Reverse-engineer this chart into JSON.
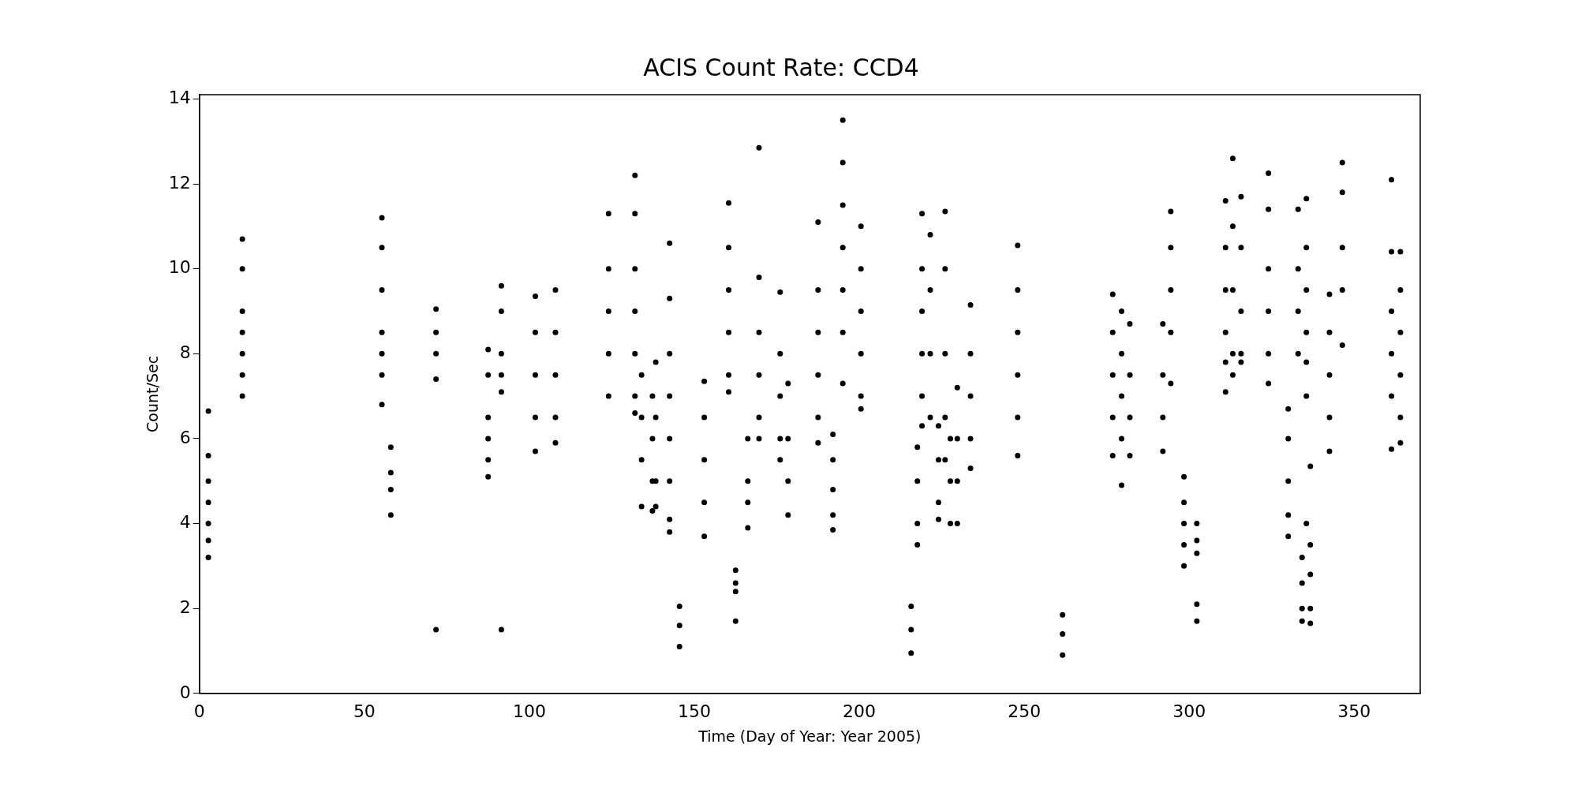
{
  "chart_data": {
    "type": "scatter",
    "title": "ACIS Count Rate: CCD4",
    "xlabel": "Time (Day of Year: Year 2005)",
    "ylabel": "Count/Sec",
    "xlim": [
      0,
      370
    ],
    "ylim": [
      0,
      14.1
    ],
    "xticks": [
      0,
      50,
      100,
      150,
      200,
      250,
      300,
      350
    ],
    "yticks": [
      0,
      2,
      4,
      6,
      8,
      10,
      12,
      14
    ],
    "grid": false,
    "legend": false,
    "marker": "circle",
    "series": [
      {
        "color": "#000000",
        "x": [
          2.7,
          2.7,
          2.7,
          2.7,
          2.7,
          2.7,
          2.7,
          13,
          13,
          13,
          13,
          13,
          13,
          13,
          55.3,
          55.3,
          55.3,
          55.3,
          55.3,
          55.3,
          55.3,
          58,
          58,
          58,
          58,
          71.7,
          71.7,
          71.7,
          71.7,
          71.7,
          87.5,
          87.5,
          87.5,
          87.5,
          87.5,
          87.5,
          91.5,
          91.5,
          91.5,
          91.5,
          91.5,
          91.5,
          101.8,
          101.8,
          101.8,
          101.8,
          101.8,
          107.9,
          107.9,
          107.9,
          107.9,
          107.9,
          124,
          124,
          124,
          124,
          124,
          132,
          132,
          132,
          132,
          132,
          132,
          132,
          134,
          134,
          134,
          134,
          137.3,
          137.3,
          137.3,
          137.3,
          138.3,
          138.3,
          138.3,
          138.3,
          142.5,
          142.5,
          142.5,
          142.5,
          142.5,
          142.5,
          142.5,
          142.5,
          145.5,
          145.5,
          145.5,
          153,
          153,
          153,
          153,
          153,
          160.4,
          160.4,
          160.4,
          160.4,
          160.4,
          160.4,
          162.5,
          162.5,
          162.5,
          162.5,
          166.2,
          166.2,
          166.2,
          166.2,
          169.6,
          169.6,
          169.6,
          169.6,
          169.6,
          169.6,
          176,
          176,
          176,
          176,
          176,
          178.4,
          178.4,
          178.4,
          178.4,
          187.5,
          187.5,
          187.5,
          187.5,
          187.5,
          187.5,
          192,
          192,
          192,
          192,
          192,
          195,
          195,
          195,
          195,
          195,
          195,
          195,
          200.5,
          200.5,
          200.5,
          200.5,
          200.5,
          200.5,
          215.7,
          215.7,
          215.7,
          217.6,
          217.6,
          217.6,
          217.6,
          219,
          219,
          219,
          219,
          219,
          219,
          221.5,
          221.5,
          221.5,
          221.5,
          224,
          224,
          224,
          224,
          226,
          226,
          226,
          226,
          226,
          227.6,
          227.6,
          227.6,
          229.7,
          229.7,
          229.7,
          229.7,
          233.7,
          233.7,
          233.7,
          233.7,
          233.7,
          248,
          248,
          248,
          248,
          248,
          248,
          261.6,
          261.6,
          261.6,
          276.8,
          276.8,
          276.8,
          276.8,
          276.8,
          279.5,
          279.5,
          279.5,
          279.5,
          279.5,
          282,
          282,
          282,
          282,
          292,
          292,
          292,
          292,
          294.4,
          294.4,
          294.4,
          294.4,
          294.4,
          298.4,
          298.4,
          298.4,
          298.4,
          298.4,
          302.3,
          302.3,
          302.3,
          302.3,
          302.3,
          311,
          311,
          311,
          311,
          311,
          311,
          313.2,
          313.2,
          313.2,
          313.2,
          313.2,
          315.7,
          315.7,
          315.7,
          315.7,
          315.7,
          324,
          324,
          324,
          324,
          324,
          324,
          330,
          330,
          330,
          330,
          330,
          333,
          333,
          333,
          333,
          334.2,
          334.2,
          334.2,
          334.2,
          335.5,
          335.5,
          335.5,
          335.5,
          335.5,
          335.5,
          335.5,
          336.7,
          336.7,
          336.7,
          336.7,
          336.7,
          342.5,
          342.5,
          342.5,
          342.5,
          342.5,
          346.4,
          346.4,
          346.4,
          346.4,
          346.4,
          361.3,
          361.3,
          361.3,
          361.3,
          361.3,
          361.3,
          364,
          364,
          364,
          364,
          364,
          364
        ],
        "values": [
          6.65,
          5.6,
          5.0,
          4.5,
          4.0,
          3.6,
          3.2,
          10.7,
          10.0,
          9.0,
          8.5,
          8.0,
          7.5,
          7.0,
          11.2,
          10.5,
          9.5,
          8.5,
          8.0,
          7.5,
          6.8,
          5.8,
          5.2,
          4.8,
          4.2,
          9.05,
          8.5,
          8.0,
          7.4,
          1.5,
          8.1,
          7.5,
          6.5,
          6.0,
          5.5,
          5.1,
          9.6,
          9.0,
          8.0,
          7.5,
          7.1,
          1.5,
          9.35,
          8.5,
          7.5,
          6.5,
          5.7,
          9.5,
          8.5,
          7.5,
          6.5,
          5.9,
          11.3,
          10.0,
          9.0,
          8.0,
          7.0,
          12.2,
          11.3,
          10.0,
          9.0,
          8.0,
          7.0,
          6.6,
          7.5,
          6.5,
          5.5,
          4.4,
          7.0,
          6.0,
          5.0,
          4.3,
          7.8,
          6.5,
          5.0,
          4.4,
          10.6,
          9.3,
          8.0,
          7.0,
          6.0,
          5.0,
          4.1,
          3.8,
          2.05,
          1.6,
          1.1,
          7.35,
          6.5,
          5.5,
          4.5,
          3.7,
          11.55,
          10.5,
          9.5,
          8.5,
          7.5,
          7.1,
          2.9,
          2.6,
          2.4,
          1.7,
          6.0,
          5.0,
          4.5,
          3.9,
          12.85,
          9.8,
          8.5,
          7.5,
          6.5,
          6.0,
          9.45,
          8.0,
          7.0,
          6.0,
          5.5,
          7.3,
          6.0,
          5.0,
          4.2,
          11.1,
          9.5,
          8.5,
          7.5,
          6.5,
          5.9,
          6.1,
          5.5,
          4.8,
          4.2,
          3.85,
          13.5,
          12.5,
          11.5,
          10.5,
          9.5,
          8.5,
          7.3,
          11.0,
          10.0,
          9.0,
          8.0,
          7.0,
          6.7,
          2.05,
          1.5,
          0.95,
          5.8,
          5.0,
          4.0,
          3.5,
          11.3,
          10.0,
          9.0,
          8.0,
          7.0,
          6.3,
          10.8,
          9.5,
          8.0,
          6.5,
          6.3,
          5.5,
          4.5,
          4.1,
          11.35,
          10.0,
          8.0,
          6.5,
          5.5,
          6.0,
          5.0,
          4.0,
          7.2,
          6.0,
          5.0,
          4.0,
          9.15,
          8.0,
          7.0,
          6.0,
          5.3,
          10.55,
          9.5,
          8.5,
          7.5,
          6.5,
          5.6,
          1.85,
          1.4,
          0.9,
          9.4,
          8.5,
          7.5,
          6.5,
          5.6,
          9.0,
          8.0,
          7.0,
          6.0,
          4.9,
          8.7,
          7.5,
          6.5,
          5.6,
          8.7,
          7.5,
          6.5,
          5.7,
          11.35,
          10.5,
          9.5,
          8.5,
          7.3,
          5.1,
          4.5,
          4.0,
          3.5,
          3.0,
          4.0,
          3.6,
          3.3,
          2.1,
          1.7,
          11.6,
          10.5,
          9.5,
          8.5,
          7.8,
          7.1,
          12.6,
          11.0,
          9.5,
          8.0,
          7.5,
          11.7,
          10.5,
          9.0,
          8.0,
          7.8,
          12.25,
          11.4,
          10.0,
          9.0,
          8.0,
          7.3,
          6.7,
          6.0,
          5.0,
          4.2,
          3.7,
          11.4,
          10.0,
          9.0,
          8.0,
          3.2,
          2.6,
          2.0,
          1.7,
          11.65,
          10.5,
          9.5,
          8.5,
          7.8,
          7.0,
          4.0,
          3.5,
          2.8,
          2.0,
          1.65,
          5.35,
          9.4,
          8.5,
          7.5,
          6.5,
          5.7,
          12.5,
          11.8,
          10.5,
          9.5,
          8.2,
          12.1,
          10.4,
          9.0,
          8.0,
          7.0,
          5.75,
          10.4,
          9.5,
          8.5,
          7.5,
          6.5,
          5.9
        ]
      }
    ]
  }
}
